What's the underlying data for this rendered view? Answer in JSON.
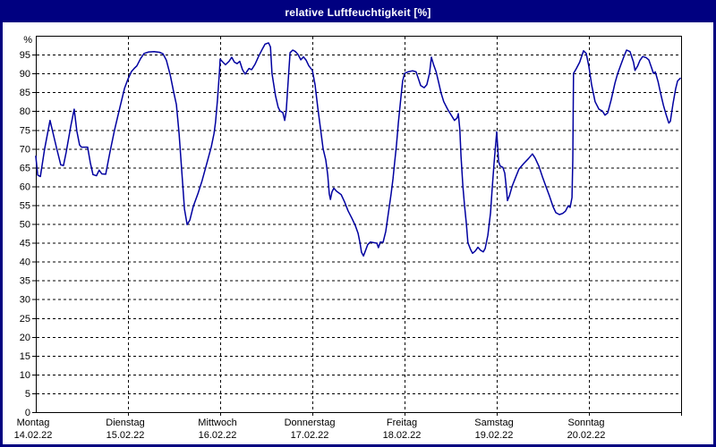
{
  "window": {
    "title": "relative Luftfeuchtigkeit [%]"
  },
  "colors": {
    "titlebar_bg": "#000080",
    "titlebar_text": "#ffffff",
    "window_border": "#000080",
    "plot_bg": "#ffffff",
    "grid": "#000000",
    "axis": "#000000",
    "line": "#0000a0"
  },
  "chart_data": {
    "type": "line",
    "title": "relative Luftfeuchtigkeit [%]",
    "y_unit": "%",
    "ylabel": "relative Luftfeuchtigkeit",
    "ylim": [
      0,
      100
    ],
    "yticks": [
      0,
      5,
      10,
      15,
      20,
      25,
      30,
      35,
      40,
      45,
      50,
      55,
      60,
      65,
      70,
      75,
      80,
      85,
      90,
      95
    ],
    "x_range_hours": [
      0,
      168
    ],
    "x_day_span_hours": 24,
    "grid": "dashed horizontal lines every 5 %, dashed vertical lines at each day boundary",
    "legend": "none",
    "x_labels": [
      {
        "day": "Montag",
        "date": "14.02.22"
      },
      {
        "day": "Dienstag",
        "date": "15.02.22"
      },
      {
        "day": "Mittwoch",
        "date": "16.02.22"
      },
      {
        "day": "Donnerstag",
        "date": "17.02.22"
      },
      {
        "day": "Freitag",
        "date": "18.02.22"
      },
      {
        "day": "Samstag",
        "date": "19.02.22"
      },
      {
        "day": "Sonntag",
        "date": "20.02.22"
      }
    ],
    "series": [
      {
        "name": "relative Luftfeuchtigkeit [%]",
        "color": "#0000a0",
        "points": [
          [
            0,
            68
          ],
          [
            0.5,
            63
          ],
          [
            1.2,
            62.6
          ],
          [
            2.3,
            70
          ],
          [
            3.7,
            77.5
          ],
          [
            5.4,
            70.2
          ],
          [
            6.5,
            65.7
          ],
          [
            7.2,
            65.5
          ],
          [
            7.9,
            69
          ],
          [
            9.1,
            76
          ],
          [
            10,
            80.5
          ],
          [
            10.7,
            74.6
          ],
          [
            11.4,
            71
          ],
          [
            11.9,
            70.4
          ],
          [
            13.5,
            70.4
          ],
          [
            14.2,
            66.3
          ],
          [
            14.9,
            63.1
          ],
          [
            15.8,
            62.8
          ],
          [
            16.5,
            64.3
          ],
          [
            17.2,
            63.3
          ],
          [
            18.2,
            63.2
          ],
          [
            19.3,
            69
          ],
          [
            20.5,
            75
          ],
          [
            21.9,
            81
          ],
          [
            23.1,
            86
          ],
          [
            24,
            88.5
          ],
          [
            24.9,
            90.5
          ],
          [
            25.6,
            91.3
          ],
          [
            26.3,
            92
          ],
          [
            27.3,
            94
          ],
          [
            28.2,
            95.3
          ],
          [
            29.4,
            95.7
          ],
          [
            30.8,
            95.8
          ],
          [
            32.2,
            95.6
          ],
          [
            33.1,
            95.2
          ],
          [
            34,
            93.5
          ],
          [
            35,
            89.6
          ],
          [
            35.9,
            85
          ],
          [
            36.6,
            81.7
          ],
          [
            37.3,
            74
          ],
          [
            38,
            64
          ],
          [
            38.7,
            54
          ],
          [
            39.4,
            49.8
          ],
          [
            40.1,
            51
          ],
          [
            41,
            54.7
          ],
          [
            42.2,
            58
          ],
          [
            43.3,
            61.5
          ],
          [
            44.5,
            66
          ],
          [
            45.7,
            70.5
          ],
          [
            46.4,
            74
          ],
          [
            46.8,
            77
          ],
          [
            47.3,
            83
          ],
          [
            47.8,
            90
          ],
          [
            48,
            93.8
          ],
          [
            48.7,
            93
          ],
          [
            49.4,
            92.3
          ],
          [
            50.3,
            93.2
          ],
          [
            51,
            94.3
          ],
          [
            51.7,
            93
          ],
          [
            52.4,
            92.6
          ],
          [
            53.1,
            93.2
          ],
          [
            53.8,
            91
          ],
          [
            54.5,
            89.8
          ],
          [
            55.5,
            91.3
          ],
          [
            56.2,
            91
          ],
          [
            57.1,
            92.5
          ],
          [
            58,
            94.5
          ],
          [
            59,
            96.5
          ],
          [
            59.7,
            97.8
          ],
          [
            60.6,
            98.1
          ],
          [
            61.1,
            97
          ],
          [
            61.5,
            90
          ],
          [
            62.4,
            84.1
          ],
          [
            63.1,
            81
          ],
          [
            63.6,
            80
          ],
          [
            64.3,
            79.6
          ],
          [
            64.8,
            77.5
          ],
          [
            65.2,
            80
          ],
          [
            65.7,
            88
          ],
          [
            66.2,
            95.5
          ],
          [
            66.9,
            96.2
          ],
          [
            67.6,
            95.8
          ],
          [
            68.3,
            95
          ],
          [
            69,
            93.6
          ],
          [
            69.7,
            94.4
          ],
          [
            70.4,
            93.5
          ],
          [
            71.1,
            92
          ],
          [
            72,
            90.8
          ],
          [
            72.7,
            87
          ],
          [
            73.4,
            81
          ],
          [
            74.1,
            75.5
          ],
          [
            74.8,
            70
          ],
          [
            75.5,
            67
          ],
          [
            76,
            63
          ],
          [
            76.4,
            58
          ],
          [
            76.7,
            56.5
          ],
          [
            77.1,
            58.5
          ],
          [
            77.6,
            59.5
          ],
          [
            78.3,
            58.7
          ],
          [
            79.5,
            57.8
          ],
          [
            80.4,
            55.8
          ],
          [
            81.3,
            53.5
          ],
          [
            82.3,
            51.5
          ],
          [
            83.2,
            49.5
          ],
          [
            83.9,
            47.5
          ],
          [
            84.4,
            45
          ],
          [
            84.8,
            42.5
          ],
          [
            85.3,
            41.5
          ],
          [
            85.8,
            42.8
          ],
          [
            86.4,
            44.5
          ],
          [
            87.1,
            45.2
          ],
          [
            88.1,
            45
          ],
          [
            88.8,
            44.9
          ],
          [
            89.2,
            43.7
          ],
          [
            89.7,
            45.2
          ],
          [
            90.4,
            45.1
          ],
          [
            91.1,
            48
          ],
          [
            91.8,
            53
          ],
          [
            92.5,
            58
          ],
          [
            93,
            62
          ],
          [
            93.4,
            66
          ],
          [
            93.9,
            71
          ],
          [
            94.4,
            76.9
          ],
          [
            95.1,
            84
          ],
          [
            95.5,
            88
          ],
          [
            96,
            90
          ],
          [
            96.9,
            90.4
          ],
          [
            98.1,
            90.7
          ],
          [
            99,
            90.4
          ],
          [
            99.7,
            88.3
          ],
          [
            100.2,
            86.8
          ],
          [
            101.1,
            86.2
          ],
          [
            101.8,
            87
          ],
          [
            102.5,
            90
          ],
          [
            103,
            94.3
          ],
          [
            103.5,
            92.5
          ],
          [
            104.2,
            90.5
          ],
          [
            104.9,
            87.5
          ],
          [
            105.5,
            84.8
          ],
          [
            106.2,
            82.5
          ],
          [
            107.2,
            80.5
          ],
          [
            108.1,
            79
          ],
          [
            109,
            77.5
          ],
          [
            109.7,
            78.2
          ],
          [
            110,
            79.3
          ],
          [
            110.4,
            75
          ],
          [
            110.7,
            68
          ],
          [
            111.2,
            60
          ],
          [
            111.6,
            55
          ],
          [
            112.1,
            50
          ],
          [
            112.5,
            45
          ],
          [
            113.2,
            43.2
          ],
          [
            113.7,
            42.2
          ],
          [
            114.4,
            42.8
          ],
          [
            115.1,
            43.8
          ],
          [
            115.8,
            43
          ],
          [
            116.5,
            42.6
          ],
          [
            117,
            43.5
          ],
          [
            117.7,
            47
          ],
          [
            118.4,
            53
          ],
          [
            118.8,
            59
          ],
          [
            119.3,
            66
          ],
          [
            119.8,
            72
          ],
          [
            120,
            74.5
          ],
          [
            120.2,
            71
          ],
          [
            120.5,
            66.5
          ],
          [
            120.9,
            65.4
          ],
          [
            121.6,
            65
          ],
          [
            122.1,
            63.5
          ],
          [
            122.6,
            58.5
          ],
          [
            122.8,
            56.2
          ],
          [
            123.3,
            57.5
          ],
          [
            124,
            60
          ],
          [
            124.9,
            62.3
          ],
          [
            125.8,
            64.6
          ],
          [
            127,
            66
          ],
          [
            128.2,
            67.3
          ],
          [
            129.3,
            68.6
          ],
          [
            130,
            67.5
          ],
          [
            131,
            65.3
          ],
          [
            131.9,
            62.5
          ],
          [
            132.8,
            60
          ],
          [
            133.7,
            57.5
          ],
          [
            134.7,
            54.5
          ],
          [
            135.4,
            53
          ],
          [
            136.3,
            52.5
          ],
          [
            137.2,
            52.8
          ],
          [
            137.9,
            53.4
          ],
          [
            138.6,
            54.8
          ],
          [
            139.1,
            54.4
          ],
          [
            139.6,
            57
          ],
          [
            139.8,
            67
          ],
          [
            140,
            90
          ],
          [
            140.7,
            91.2
          ],
          [
            141.6,
            93
          ],
          [
            142.6,
            96
          ],
          [
            143.3,
            95.3
          ],
          [
            144,
            91.8
          ],
          [
            144.7,
            87
          ],
          [
            145.6,
            82.5
          ],
          [
            146.6,
            80.5
          ],
          [
            147.5,
            80
          ],
          [
            148.2,
            78.9
          ],
          [
            148.9,
            79.5
          ],
          [
            149.8,
            83
          ],
          [
            150.8,
            87.5
          ],
          [
            151.5,
            90
          ],
          [
            152.4,
            92.5
          ],
          [
            153.1,
            94.5
          ],
          [
            153.8,
            96.2
          ],
          [
            154.7,
            95.8
          ],
          [
            155.6,
            93
          ],
          [
            156,
            90.8
          ],
          [
            156.7,
            92
          ],
          [
            157.3,
            93.5
          ],
          [
            158,
            94.5
          ],
          [
            158.9,
            94.2
          ],
          [
            159.6,
            93.6
          ],
          [
            160.3,
            91.5
          ],
          [
            160.8,
            90
          ],
          [
            161.3,
            90.4
          ],
          [
            162,
            87.8
          ],
          [
            162.7,
            84.5
          ],
          [
            163.4,
            81.5
          ],
          [
            164.1,
            79
          ],
          [
            164.8,
            76.8
          ],
          [
            165.2,
            77.3
          ],
          [
            165.9,
            82
          ],
          [
            166.6,
            86
          ],
          [
            167.1,
            88
          ],
          [
            167.8,
            88.7
          ]
        ]
      }
    ]
  }
}
